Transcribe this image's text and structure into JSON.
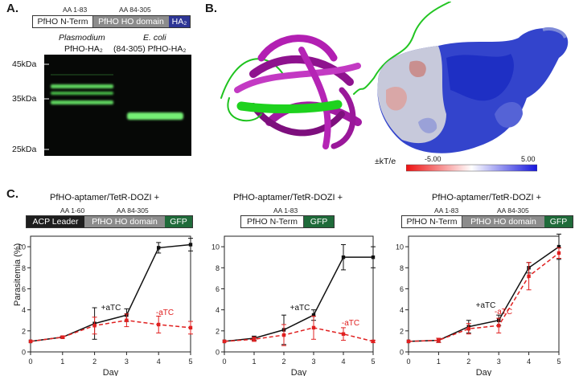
{
  "panelA": {
    "letter": "A.",
    "aa_labels": [
      "AA 1-83",
      "AA 84-305"
    ],
    "construct": [
      "PfHO N-Term",
      "PfHO HO domain",
      "HA₂"
    ],
    "lane1": [
      "Plasmodium",
      "PfHO-HA₂"
    ],
    "lane2": [
      "E. coli",
      "(84-305) PfHO-HA₂"
    ],
    "markers": [
      "45kDa",
      "35kDa",
      "25kDa"
    ]
  },
  "panelB": {
    "letter": "B.",
    "scale_label": "±kT/e",
    "scale_min": "-5.00",
    "scale_max": "5.00"
  },
  "panelC": {
    "letter": "C.",
    "ylabel": "Parasitemia (%)",
    "xlabel": "Day",
    "header": "PfHO-aptamer/TetR-DOZI +",
    "constructs": [
      {
        "aa": [
          "AA 1-60",
          "AA 84-305"
        ],
        "segments": [
          "ACP Leader",
          "PfHO HO domain",
          "GFP"
        ]
      },
      {
        "aa": [
          "AA 1-83"
        ],
        "segments": [
          "PfHO N-Term",
          "GFP"
        ]
      },
      {
        "aa": [
          "AA 1-83",
          "AA 84-305"
        ],
        "segments": [
          "PfHO N-Term",
          "PfHO HO domain",
          "GFP"
        ]
      }
    ]
  },
  "colors": {
    "plus": "#111111",
    "minus": "#e02020",
    "navy": "#2e3696",
    "green_box": "#1f6b3a"
  },
  "chart_data": [
    {
      "type": "line",
      "x": [
        0,
        1,
        2,
        3,
        4,
        5
      ],
      "xlabel": "Day",
      "ylabel": "Parasitemia (%)",
      "ylim": [
        0,
        11
      ],
      "yticks": [
        0,
        2,
        4,
        6,
        8,
        10
      ],
      "series": [
        {
          "name": "+aTC",
          "values": [
            1.0,
            1.4,
            2.7,
            3.5,
            9.9,
            10.2
          ],
          "err": [
            0.05,
            0.1,
            1.5,
            0.6,
            0.5,
            0.6
          ]
        },
        {
          "name": "-aTC",
          "values": [
            1.0,
            1.4,
            2.5,
            3.0,
            2.6,
            2.3
          ],
          "err": [
            0.05,
            0.1,
            0.8,
            0.6,
            0.8,
            0.6
          ]
        }
      ]
    },
    {
      "type": "line",
      "x": [
        0,
        1,
        2,
        3,
        4,
        5
      ],
      "xlabel": "Day",
      "ylim": [
        0,
        11
      ],
      "yticks": [
        0,
        2,
        4,
        6,
        8,
        10
      ],
      "series": [
        {
          "name": "+aTC",
          "values": [
            1.0,
            1.3,
            2.1,
            3.5,
            9.0,
            9.0
          ],
          "err": [
            0.05,
            0.2,
            1.4,
            0.5,
            1.2,
            1.0
          ]
        },
        {
          "name": "-aTC",
          "values": [
            1.0,
            1.2,
            1.6,
            2.3,
            1.7,
            1.0
          ],
          "err": [
            0.05,
            0.2,
            1.0,
            1.1,
            0.6,
            0.1
          ]
        }
      ]
    },
    {
      "type": "line",
      "x": [
        0,
        1,
        2,
        3,
        4,
        5
      ],
      "xlabel": "Day",
      "ylim": [
        0,
        11
      ],
      "yticks": [
        0,
        2,
        4,
        6,
        8,
        10
      ],
      "series": [
        {
          "name": "+aTC",
          "values": [
            1.0,
            1.1,
            2.4,
            3.0,
            8.0,
            10.0
          ],
          "err": [
            0.05,
            0.2,
            0.6,
            0.5,
            0.5,
            1.2
          ]
        },
        {
          "name": "-aTC",
          "values": [
            1.0,
            1.1,
            2.2,
            2.5,
            7.2,
            9.4
          ],
          "err": [
            0.05,
            0.2,
            0.5,
            0.7,
            1.3,
            0.5
          ]
        }
      ]
    }
  ]
}
